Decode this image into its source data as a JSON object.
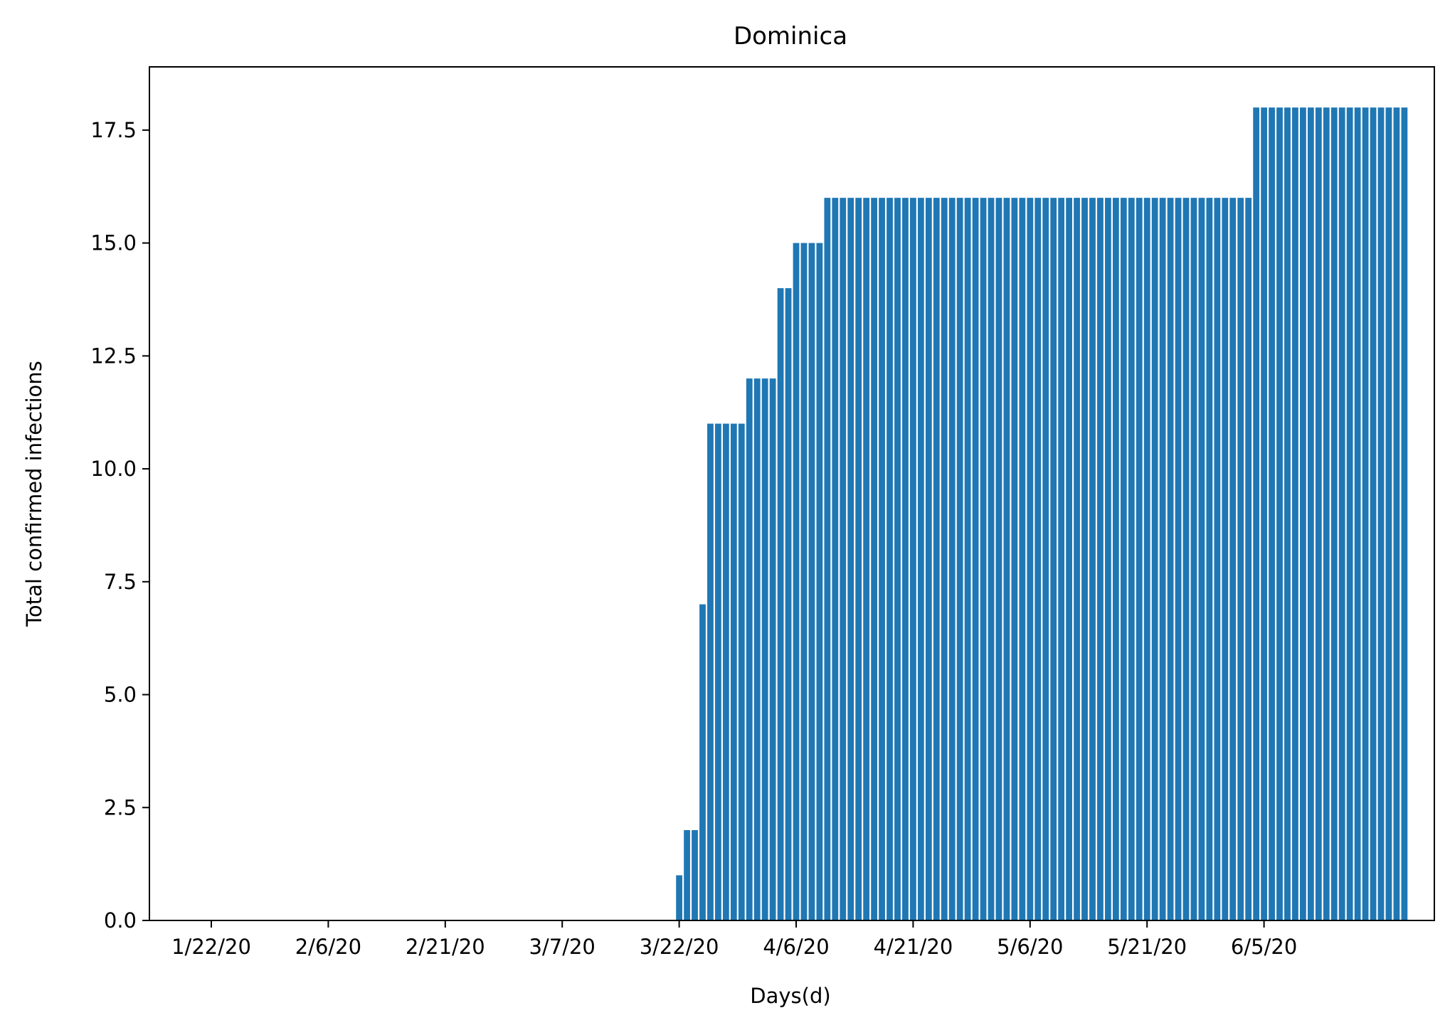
{
  "chart_data": {
    "type": "bar",
    "title": "Dominica",
    "xlabel": "Days(d)",
    "ylabel": "Total confirmed infections",
    "x_tick_labels": [
      "1/22/20",
      "2/6/20",
      "2/21/20",
      "3/7/20",
      "3/22/20",
      "4/6/20",
      "4/21/20",
      "5/6/20",
      "5/21/20",
      "6/5/20"
    ],
    "y_tick_labels": [
      "0.0",
      "2.5",
      "5.0",
      "7.5",
      "10.0",
      "12.5",
      "15.0",
      "17.5"
    ],
    "y_ticks": [
      0,
      2.5,
      5,
      7.5,
      10,
      12.5,
      15,
      17.5
    ],
    "ylim": [
      0,
      18.9
    ],
    "x_start_date": "1/22/20",
    "x_end_date": "6/23/20",
    "grid": false,
    "bar_color": "#1f77b4",
    "segments": [
      {
        "from": "1/22/20",
        "to": "3/21/20",
        "value": 0
      },
      {
        "from": "3/22/20",
        "to": "3/22/20",
        "value": 1
      },
      {
        "from": "3/23/20",
        "to": "3/24/20",
        "value": 2
      },
      {
        "from": "3/25/20",
        "to": "3/25/20",
        "value": 7
      },
      {
        "from": "3/26/20",
        "to": "3/30/20",
        "value": 11
      },
      {
        "from": "3/31/20",
        "to": "4/3/20",
        "value": 12
      },
      {
        "from": "4/4/20",
        "to": "4/5/20",
        "value": 14
      },
      {
        "from": "4/6/20",
        "to": "4/9/20",
        "value": 15
      },
      {
        "from": "4/10/20",
        "to": "6/3/20",
        "value": 16
      },
      {
        "from": "6/4/20",
        "to": "6/23/20",
        "value": 18
      }
    ]
  }
}
